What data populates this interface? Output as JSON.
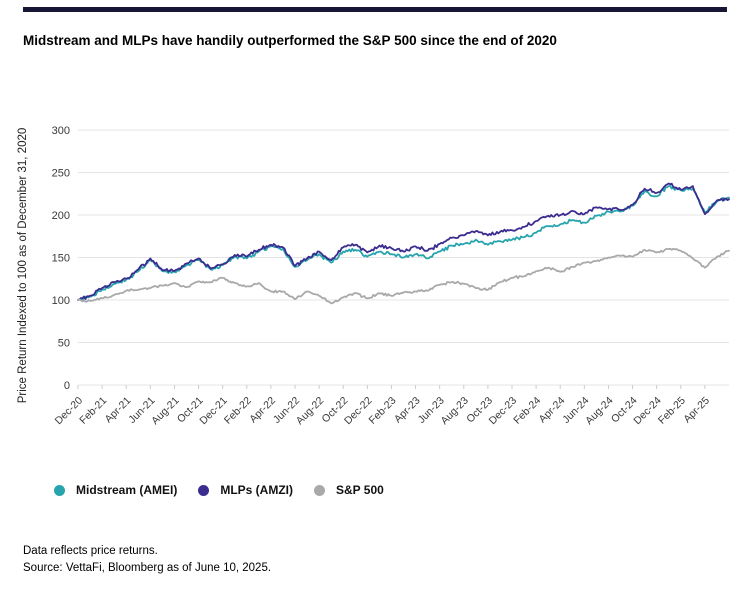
{
  "page": {
    "title": "Midstream and MLPs have handily outperformed the S&P 500 since the end of 2020",
    "footnote_line1": "Data reflects price returns.",
    "footnote_line2": "Source: VettaFi, Bloomberg as of June 10, 2025."
  },
  "colors": {
    "top_accent_bar": "#171735",
    "gridline": "#e4e4e4",
    "axis_line": "#cccccc",
    "tick_text": "#3a3a3a"
  },
  "chart_data": {
    "type": "line",
    "title": "Midstream and MLPs have handily outperformed the S&P 500 since the end of 2020",
    "xlabel": "",
    "ylabel": "Price Return Indexed to 100 as of December 31, 2020",
    "ylim": [
      0,
      300
    ],
    "yticks": [
      0,
      50,
      100,
      150,
      200,
      250,
      300
    ],
    "grid": "horizontal",
    "legend_position": "bottom",
    "x_tick_labels": [
      "Dec-20",
      "Feb-21",
      "Apr-21",
      "Jun-21",
      "Aug-21",
      "Oct-21",
      "Dec-21",
      "Feb-22",
      "Apr-22",
      "Jun-22",
      "Aug-22",
      "Oct-22",
      "Dec-22",
      "Feb-23",
      "Apr-23",
      "Jun-23",
      "Aug-23",
      "Oct-23",
      "Dec-23",
      "Feb-24",
      "Apr-24",
      "Jun-24",
      "Aug-24",
      "Oct-24",
      "Dec-24",
      "Feb-25",
      "Apr-25"
    ],
    "months_per_tick": 2,
    "x_monthly_points": [
      "Dec-20",
      "Jan-21",
      "Feb-21",
      "Mar-21",
      "Apr-21",
      "May-21",
      "Jun-21",
      "Jul-21",
      "Aug-21",
      "Sep-21",
      "Oct-21",
      "Nov-21",
      "Dec-21",
      "Jan-22",
      "Feb-22",
      "Mar-22",
      "Apr-22",
      "May-22",
      "Jun-22",
      "Jul-22",
      "Aug-22",
      "Sep-22",
      "Oct-22",
      "Nov-22",
      "Dec-22",
      "Jan-23",
      "Feb-23",
      "Mar-23",
      "Apr-23",
      "May-23",
      "Jun-23",
      "Jul-23",
      "Aug-23",
      "Sep-23",
      "Oct-23",
      "Nov-23",
      "Dec-23",
      "Jan-24",
      "Feb-24",
      "Mar-24",
      "Apr-24",
      "May-24",
      "Jun-24",
      "Jul-24",
      "Aug-24",
      "Sep-24",
      "Oct-24",
      "Nov-24",
      "Dec-24",
      "Jan-25",
      "Feb-25",
      "Mar-25",
      "Apr-25",
      "May-25",
      "Jun-25"
    ],
    "series": [
      {
        "name": "Midstream (AMEI)",
        "color": "#27A4AE",
        "daily_noise": 2.3,
        "monthly_values": [
          100,
          104,
          112,
          119,
          124,
          134,
          147,
          134,
          133,
          141,
          147,
          136,
          141,
          151,
          149,
          157,
          163,
          160,
          139,
          147,
          154,
          144,
          157,
          159,
          151,
          157,
          154,
          150,
          154,
          149,
          157,
          164,
          166,
          171,
          165,
          169,
          171,
          174,
          179,
          187,
          189,
          194,
          191,
          199,
          204,
          204,
          211,
          228,
          222,
          234,
          229,
          231,
          203,
          216,
          220.5
        ]
      },
      {
        "name": "MLPs (AMZI)",
        "color": "#3B2D8F",
        "daily_noise": 2.3,
        "monthly_values": [
          100,
          105,
          114,
          121,
          125,
          136,
          149,
          135,
          134,
          143,
          149,
          137,
          142,
          153,
          151,
          159,
          165,
          162,
          140,
          149,
          157,
          147,
          162,
          165,
          156,
          164,
          161,
          157,
          163,
          158,
          166,
          173,
          176,
          181,
          176,
          180,
          182,
          186,
          193,
          199,
          200,
          205,
          201,
          209,
          207,
          206,
          212,
          231,
          226,
          237,
          230,
          234,
          201,
          217,
          218.5
        ]
      },
      {
        "name": "S&P 500",
        "color": "#A9A9AC",
        "daily_noise": 1.5,
        "monthly_values": [
          100,
          99,
          102,
          106,
          111,
          112,
          114,
          117,
          120,
          115,
          122,
          121,
          126,
          120,
          116,
          120,
          110,
          110,
          101,
          110,
          105,
          96,
          103,
          108,
          102,
          108,
          105,
          109,
          110,
          111,
          118,
          121,
          119,
          114,
          112,
          121,
          126,
          128,
          134,
          138,
          133,
          139,
          144,
          146,
          150,
          152,
          151,
          159,
          156,
          160,
          158,
          149,
          138,
          151,
          158
        ]
      }
    ]
  }
}
